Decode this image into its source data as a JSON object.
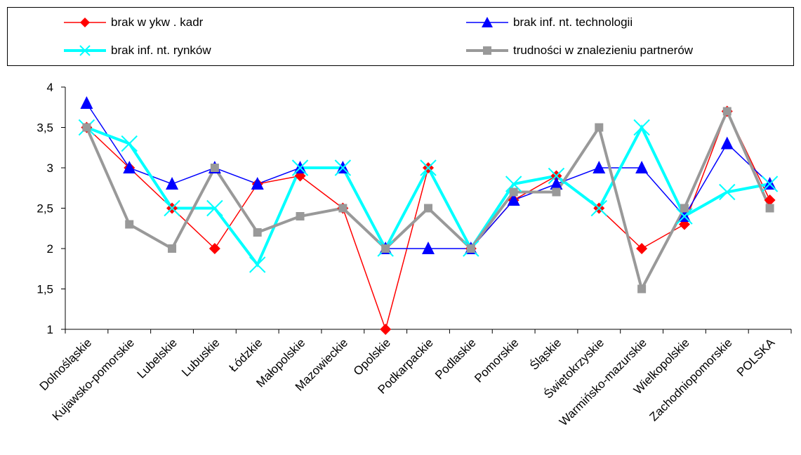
{
  "chart_data": {
    "type": "line",
    "categories": [
      "Dolnośląskie",
      "Kujawsko-pomorskie",
      "Lubelskie",
      "Lubuskie",
      "Łódzkie",
      "Małopolskie",
      "Mazowieckie",
      "Opolskie",
      "Podkarpackie",
      "Podlaskie",
      "Pomorskie",
      "Śląskie",
      "Świętokrzyskie",
      "Warmińsko-mazurskie",
      "Wielkopolskie",
      "Zachodniopomorskie",
      "POLSKA"
    ],
    "ylim": [
      1,
      4
    ],
    "yticks": [
      "1",
      "1,5",
      "2",
      "2,5",
      "3",
      "3,5",
      "4"
    ],
    "xlabel": "",
    "ylabel": "",
    "grid": false,
    "legend_position": "top",
    "series": [
      {
        "name": "brak w ykw . kadr",
        "color": "#ff0000",
        "marker": "diamond",
        "values": [
          3.5,
          3.0,
          2.5,
          2.0,
          2.8,
          2.9,
          2.5,
          1.0,
          3.0,
          2.0,
          2.6,
          2.9,
          2.5,
          2.0,
          2.3,
          3.7,
          2.6
        ]
      },
      {
        "name": "brak inf. nt. technologii",
        "color": "#0000ff",
        "marker": "triangle",
        "values": [
          3.8,
          3.0,
          2.8,
          3.0,
          2.8,
          3.0,
          3.0,
          2.0,
          2.0,
          2.0,
          2.6,
          2.8,
          3.0,
          3.0,
          2.4,
          3.3,
          2.8
        ]
      },
      {
        "name": "brak inf. nt. rynków",
        "color": "#00ffff",
        "marker": "x",
        "values": [
          3.5,
          3.3,
          2.5,
          2.5,
          1.8,
          3.0,
          3.0,
          2.0,
          3.0,
          2.0,
          2.8,
          2.9,
          2.5,
          3.5,
          2.4,
          2.7,
          2.8
        ]
      },
      {
        "name": "trudności w  znalezieniu partnerów",
        "color": "#999999",
        "marker": "square",
        "values": [
          3.5,
          2.3,
          2.0,
          3.0,
          2.2,
          2.4,
          2.5,
          2.0,
          2.5,
          2.0,
          2.7,
          2.7,
          3.5,
          1.5,
          2.5,
          3.7,
          2.5
        ]
      }
    ]
  }
}
